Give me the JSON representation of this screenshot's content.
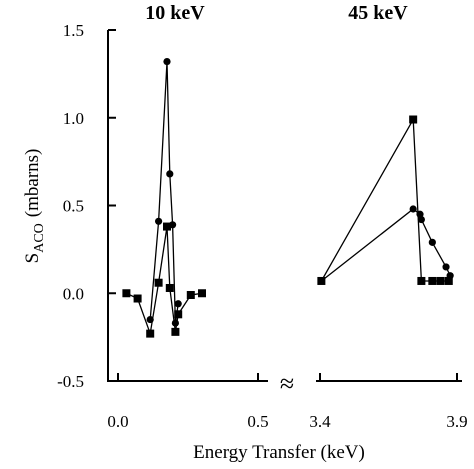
{
  "chart_data": {
    "type": "line",
    "panel_titles": [
      "10 keV",
      "45 keV"
    ],
    "ylabel_main": "S",
    "ylabel_sub": "ACO",
    "ylabel_unit": "(mbarns)",
    "xlabel": "Energy Transfer (keV)",
    "break_symbol": "≈",
    "ylim": [
      -0.5,
      1.5
    ],
    "yticks": [
      "1.5",
      "1.0",
      "0.5",
      "0.0",
      "-0.5"
    ],
    "ytick_values": [
      1.5,
      1.0,
      0.5,
      0.0,
      -0.5
    ],
    "panels": [
      {
        "name": "10 keV",
        "xlim": [
          0.0,
          0.5
        ],
        "xticks": [
          "0.0",
          "0.5"
        ],
        "xtick_values": [
          0.0,
          0.5
        ],
        "series": [
          {
            "marker": "circle",
            "x": [
              0.115,
              0.145,
              0.175,
              0.185,
              0.195,
              0.205,
              0.215
            ],
            "y": [
              -0.15,
              0.41,
              1.32,
              0.68,
              0.39,
              -0.17,
              -0.06
            ]
          },
          {
            "marker": "square",
            "x": [
              0.03,
              0.07,
              0.115,
              0.145,
              0.175,
              0.185,
              0.205,
              0.215,
              0.26,
              0.3
            ],
            "y": [
              0.0,
              -0.03,
              -0.23,
              0.06,
              0.38,
              0.03,
              -0.22,
              -0.12,
              -0.01,
              0.0
            ]
          }
        ]
      },
      {
        "name": "45 keV",
        "xlim": [
          3.4,
          3.9
        ],
        "xticks": [
          "3.4",
          "3.9"
        ],
        "xtick_values": [
          3.4,
          3.9
        ],
        "series": [
          {
            "marker": "circle",
            "x": [
              3.405,
              3.74,
              3.765,
              3.77,
              3.81,
              3.86,
              3.875
            ],
            "y": [
              0.07,
              0.48,
              0.45,
              0.42,
              0.29,
              0.15,
              0.1
            ]
          },
          {
            "marker": "square",
            "x": [
              3.405,
              3.74,
              3.77,
              3.81,
              3.84,
              3.87
            ],
            "y": [
              0.07,
              0.99,
              0.07,
              0.07,
              0.07,
              0.07
            ]
          }
        ]
      }
    ]
  }
}
